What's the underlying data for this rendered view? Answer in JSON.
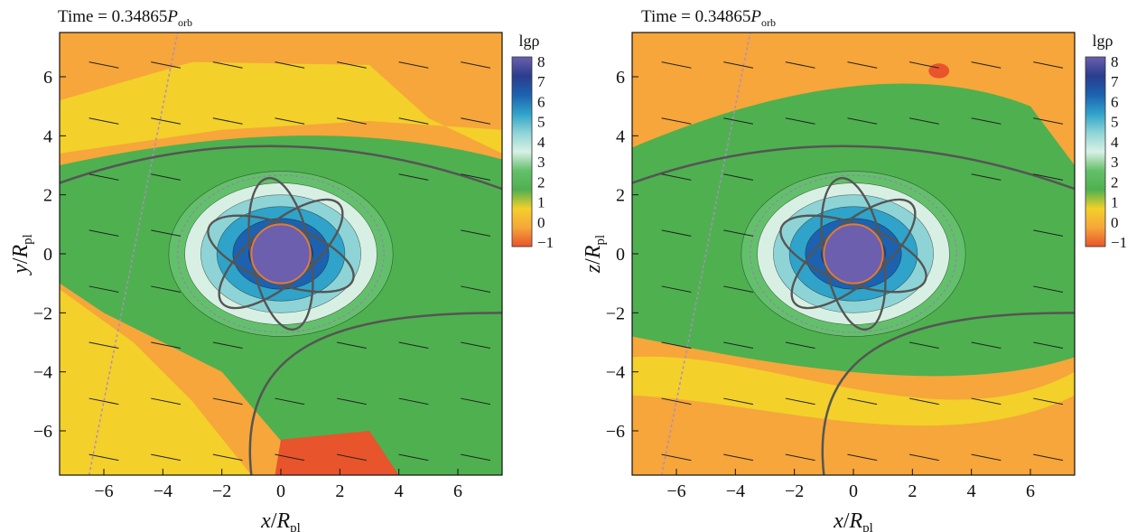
{
  "panels": [
    {
      "id": "xy",
      "time_prefix": "Time = 0.34865",
      "time_symbol": "P",
      "time_subscript": "orb",
      "xlabel": {
        "var": "x",
        "unit": "R",
        "sub": "pl"
      },
      "ylabel": {
        "var": "y",
        "unit": "R",
        "sub": "pl"
      }
    },
    {
      "id": "xz",
      "time_prefix": "Time = 0.34865",
      "time_symbol": "P",
      "time_subscript": "orb",
      "xlabel": {
        "var": "x",
        "unit": "R",
        "sub": "pl"
      },
      "ylabel": {
        "var": "z",
        "unit": "R",
        "sub": "pl"
      }
    }
  ],
  "colorbar": {
    "title": "lgρ",
    "ticks": [
      "8",
      "7",
      "6",
      "5",
      "4",
      "3",
      "2",
      "1",
      "0",
      "−1"
    ],
    "range": [
      -1,
      8
    ],
    "colors": [
      "#e8542b",
      "#f6a63a",
      "#f3d02a",
      "#4fb050",
      "#63c06a",
      "#d8f0e4",
      "#8ed4d6",
      "#2fa3c9",
      "#1c62b0",
      "#2a3d8c",
      "#6b5fae"
    ]
  },
  "chart_data": [
    {
      "type": "heatmap",
      "title": "Time = 0.34865 P_orb",
      "xlabel": "x/R_pl",
      "ylabel": "y/R_pl",
      "xlim": [
        -7.5,
        7.5
      ],
      "ylim": [
        -7.5,
        7.5
      ],
      "xticks": [
        "−6",
        "−4",
        "−2",
        "0",
        "2",
        "4",
        "6"
      ],
      "yticks": [
        "6",
        "4",
        "2",
        "0",
        "−2",
        "−4",
        "−6"
      ],
      "colorbar_label": "lgρ",
      "colorbar_range": [
        -1,
        8
      ],
      "planet_radius": 1.0,
      "envelope_rx": 3.8,
      "envelope_ry": 2.8
    },
    {
      "type": "heatmap",
      "title": "Time = 0.34865 P_orb",
      "xlabel": "x/R_pl",
      "ylabel": "z/R_pl",
      "xlim": [
        -7.5,
        7.5
      ],
      "ylim": [
        -7.5,
        7.5
      ],
      "xticks": [
        "−6",
        "−4",
        "−2",
        "0",
        "2",
        "4",
        "6"
      ],
      "yticks": [
        "6",
        "4",
        "2",
        "0",
        "−2",
        "−4",
        "−6"
      ],
      "colorbar_label": "lgρ",
      "colorbar_range": [
        -1,
        8
      ],
      "planet_radius": 1.0,
      "envelope_rx": 3.8,
      "envelope_ry": 2.8
    }
  ]
}
